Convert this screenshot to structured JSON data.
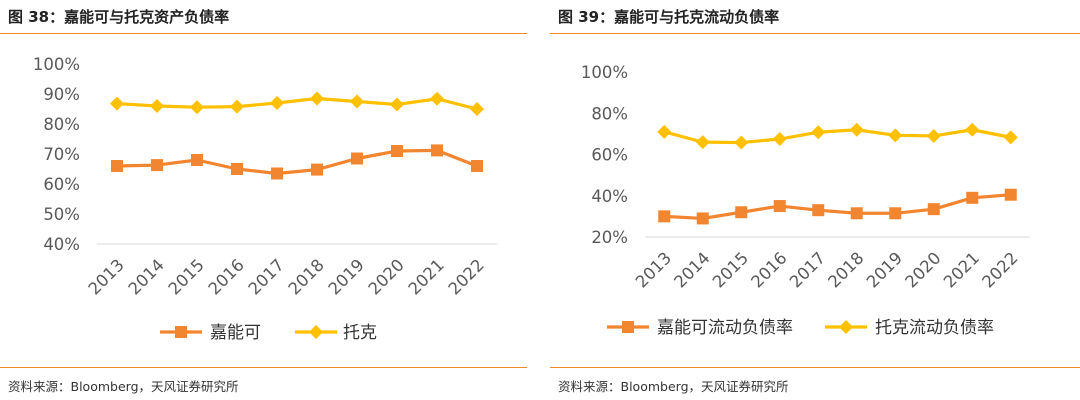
{
  "colors": {
    "accent": "#F08C28",
    "orange_series": "#F28530",
    "yellow_series": "#FFC000",
    "axis": "#D9D9D9"
  },
  "left": {
    "title": "图 38：嘉能可与托克资产负债率",
    "source": "资料来源：Bloomberg，天风证券研究所"
  },
  "right": {
    "title": "图 39：嘉能可与托克流动负债率",
    "source": "资料来源：Bloomberg，天风证券研究所"
  },
  "chart_data": [
    {
      "type": "line",
      "title": "",
      "xlabel": "",
      "ylabel": "",
      "x": [
        "2013",
        "2014",
        "2015",
        "2016",
        "2017",
        "2018",
        "2019",
        "2020",
        "2021",
        "2022"
      ],
      "ylim": [
        40,
        100
      ],
      "yticks": [
        "40%",
        "50%",
        "60%",
        "70%",
        "80%",
        "90%",
        "100%"
      ],
      "grid": false,
      "legend_position": "bottom",
      "series": [
        {
          "name": "嘉能可",
          "color": "#F28530",
          "marker": "square",
          "values": [
            66,
            66.3,
            68,
            65,
            63.5,
            64.8,
            68.5,
            71,
            71.2,
            66
          ]
        },
        {
          "name": "托克",
          "color": "#FFC000",
          "marker": "diamond",
          "values": [
            86.8,
            86,
            85.6,
            85.8,
            87,
            88.5,
            87.5,
            86.5,
            88.4,
            85
          ]
        }
      ]
    },
    {
      "type": "line",
      "title": "",
      "xlabel": "",
      "ylabel": "",
      "x": [
        "2013",
        "2014",
        "2015",
        "2016",
        "2017",
        "2018",
        "2019",
        "2020",
        "2021",
        "2022"
      ],
      "ylim": [
        20,
        100
      ],
      "yticks": [
        "20%",
        "40%",
        "60%",
        "80%",
        "100%"
      ],
      "grid": false,
      "legend_position": "bottom",
      "series": [
        {
          "name": "嘉能可流动负债率",
          "color": "#F28530",
          "marker": "square",
          "values": [
            30,
            29,
            32,
            35,
            33,
            31.5,
            31.5,
            33.5,
            39,
            40.5
          ]
        },
        {
          "name": "托克流动负债率",
          "color": "#FFC000",
          "marker": "diamond",
          "values": [
            71,
            66,
            65.8,
            67.5,
            70.8,
            72,
            69.3,
            69,
            72,
            68.3
          ]
        }
      ]
    }
  ]
}
